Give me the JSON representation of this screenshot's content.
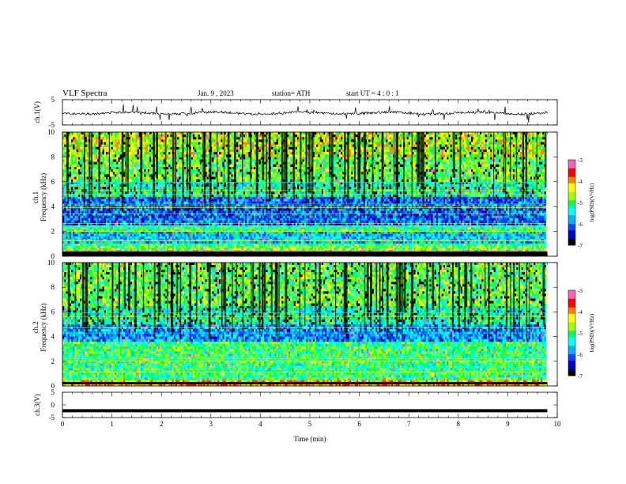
{
  "header": {
    "title": "VLF  Spectra",
    "date": "Jan.  9  , 2023",
    "station": "station= ATH",
    "start": "start  UT  =   4  : 0  : 1"
  },
  "colors": {
    "spectrum": [
      "#000000",
      "#0000cc",
      "#0044ff",
      "#00b0ff",
      "#00ffff",
      "#00ff60",
      "#a0ff00",
      "#ffff00",
      "#ff8000",
      "#ff0000",
      "#ff60c0",
      "#ffffff"
    ],
    "trace": "#000000",
    "axis": "#000000"
  },
  "chart_data": [
    {
      "type": "line",
      "name": "channel-1-waveform",
      "ylabel": "ch.1(V)",
      "ylim": [
        -5,
        5
      ],
      "yticks": [
        "5",
        "-5"
      ],
      "xlim": [
        0,
        10
      ],
      "description_note": "noisy waveform near 0 V with spikes",
      "x": [
        0,
        1,
        2,
        3,
        4,
        5,
        6,
        7,
        8,
        9,
        9.8
      ],
      "y": [
        0,
        0.3,
        -0.5,
        0.2,
        -0.3,
        0.1,
        -0.4,
        0.2,
        0.5,
        -0.2,
        0.1
      ]
    },
    {
      "type": "heatmap",
      "name": "channel-1-spectrogram",
      "channel_label": "ch.1",
      "ylabel": "Frequency  (kHz)",
      "ylim": [
        0,
        10
      ],
      "yticks": [
        "0",
        "2",
        "4",
        "6",
        "8",
        "10"
      ],
      "xlim": [
        0,
        10
      ],
      "data_extent_min": 9.8,
      "colorbar": {
        "label": "log(PSD)(V²/Hz)",
        "range": [
          -7,
          -3
        ],
        "ticks": [
          "-3",
          "-4",
          "-5",
          "-6",
          "-7"
        ]
      },
      "bands": [
        {
          "f": [
            0,
            0.5
          ],
          "level": -3.5
        },
        {
          "f": [
            0.5,
            1.0
          ],
          "level": -4.8
        },
        {
          "f": [
            1.0,
            2.0
          ],
          "level": -5.6
        },
        {
          "f": [
            2.0,
            2.5
          ],
          "level": -5.0
        },
        {
          "f": [
            2.5,
            4.8
          ],
          "level": -6.0
        },
        {
          "f": [
            4.8,
            6.0
          ],
          "level": -5.2
        },
        {
          "f": [
            6.0,
            8.0
          ],
          "level": -4.8
        },
        {
          "f": [
            8.0,
            10.0
          ],
          "level": -4.5
        }
      ]
    },
    {
      "type": "heatmap",
      "name": "channel-2-spectrogram",
      "channel_label": "ch.2",
      "ylabel": "Frequency  (kHz)",
      "ylim": [
        0,
        10
      ],
      "yticks": [
        "0",
        "2",
        "4",
        "6",
        "8",
        "10"
      ],
      "xlim": [
        0,
        10
      ],
      "data_extent_min": 9.8,
      "colorbar": {
        "label": "log(PSD)(V²/Hz)",
        "range": [
          -7,
          -3
        ],
        "ticks": [
          "-3",
          "-4",
          "-5",
          "-6",
          "-7"
        ]
      },
      "bands": [
        {
          "f": [
            0,
            0.5
          ],
          "level": -4.0
        },
        {
          "f": [
            0.5,
            2.2
          ],
          "level": -5.0
        },
        {
          "f": [
            2.2,
            3.6
          ],
          "level": -5.0
        },
        {
          "f": [
            3.6,
            5.0
          ],
          "level": -5.8
        },
        {
          "f": [
            5.0,
            6.5
          ],
          "level": -5.2
        },
        {
          "f": [
            6.5,
            10.0
          ],
          "level": -4.8
        }
      ]
    },
    {
      "type": "line",
      "name": "channel-3-waveform",
      "ylabel": "ch.3(V)",
      "ylim": [
        -5,
        5
      ],
      "yticks": [
        "5",
        "0",
        "-5"
      ],
      "xlim": [
        0,
        10
      ],
      "x": [
        0,
        9.8
      ],
      "y": [
        -2.3,
        -2.3
      ]
    }
  ],
  "xaxis": {
    "label": "Time  (min)",
    "ticks": [
      "0",
      "1",
      "2",
      "3",
      "4",
      "5",
      "6",
      "7",
      "8",
      "9",
      "10"
    ]
  }
}
